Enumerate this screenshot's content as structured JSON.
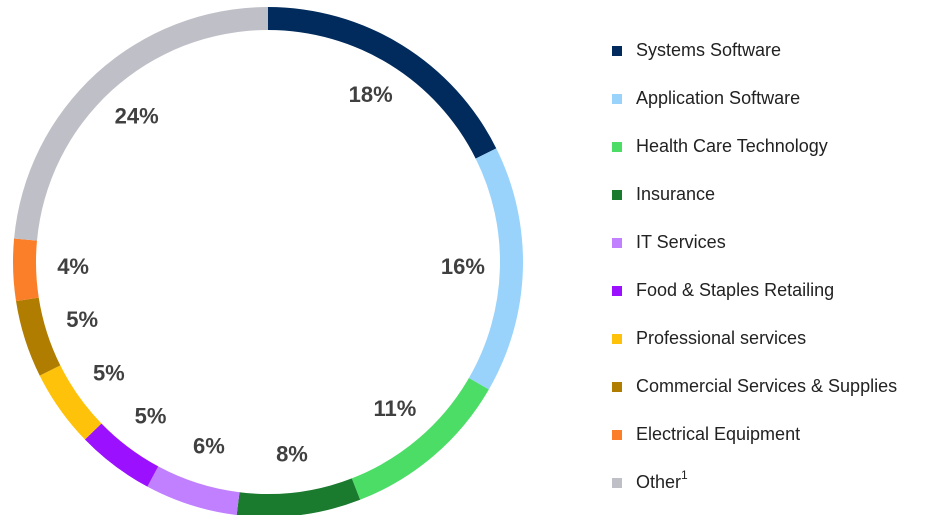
{
  "chart_data": {
    "type": "donut",
    "categories": [
      "Systems Software",
      "Application Software",
      "Health Care Technology",
      "Insurance",
      "IT Services",
      "Food & Staples Retailing",
      "Professional services",
      "Commercial Services & Supplies",
      "Electrical Equipment",
      "Other"
    ],
    "values": [
      18,
      16,
      11,
      8,
      6,
      5,
      5,
      5,
      4,
      24
    ],
    "value_labels": [
      "18%",
      "16%",
      "11%",
      "8%",
      "6%",
      "5%",
      "5%",
      "5%",
      "4%",
      "24%"
    ],
    "colors": [
      "#002b5c",
      "#99d3fb",
      "#4cdd67",
      "#1a7a2e",
      "#c080ff",
      "#9a10ff",
      "#ffc20a",
      "#b07d00",
      "#fb7f29",
      "#bfbfc7"
    ],
    "other_footnote": "1",
    "legend": "right"
  }
}
